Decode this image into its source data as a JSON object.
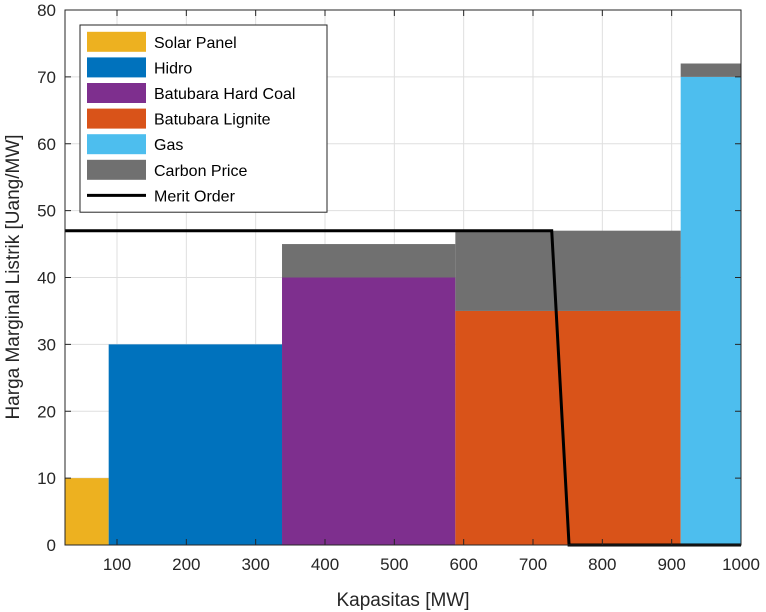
{
  "chart_data": {
    "type": "bar",
    "xlabel": "Kapasitas [MW]",
    "ylabel": "Harga Marginal Listrik [Uang/MW]",
    "xlim": [
      25,
      1000
    ],
    "ylim": [
      0,
      80
    ],
    "xticks": [
      100,
      200,
      300,
      400,
      500,
      600,
      700,
      800,
      900,
      1000
    ],
    "yticks": [
      0,
      10,
      20,
      30,
      40,
      50,
      60,
      70,
      80
    ],
    "grid": true,
    "legend_position": "top-left",
    "series": [
      {
        "name": "Solar Panel",
        "color": "#EDB120",
        "blocks": [
          {
            "x0": 25,
            "x1": 88,
            "y0": 0,
            "y1": 10
          }
        ]
      },
      {
        "name": "Hidro",
        "color": "#0072BD",
        "blocks": [
          {
            "x0": 88,
            "x1": 338,
            "y0": 0,
            "y1": 30
          }
        ]
      },
      {
        "name": "Batubara Hard Coal",
        "color": "#7E2F8E",
        "blocks": [
          {
            "x0": 338,
            "x1": 588,
            "y0": 0,
            "y1": 40
          }
        ]
      },
      {
        "name": "Batubara Lignite",
        "color": "#D95319",
        "blocks": [
          {
            "x0": 588,
            "x1": 913,
            "y0": 0,
            "y1": 35
          }
        ]
      },
      {
        "name": "Gas",
        "color": "#4DBEEE",
        "blocks": [
          {
            "x0": 913,
            "x1": 1000,
            "y0": 0,
            "y1": 70
          }
        ]
      },
      {
        "name": "Carbon Price",
        "color": "#707070",
        "blocks": [
          {
            "x0": 338,
            "x1": 588,
            "y0": 40,
            "y1": 45
          },
          {
            "x0": 588,
            "x1": 913,
            "y0": 35,
            "y1": 47
          },
          {
            "x0": 913,
            "x1": 1000,
            "y0": 70,
            "y1": 72
          }
        ]
      }
    ],
    "merit_order": {
      "name": "Merit Order",
      "color": "#000000",
      "x": [
        25,
        727,
        752,
        1000
      ],
      "y": [
        47,
        47,
        0,
        0
      ]
    }
  }
}
